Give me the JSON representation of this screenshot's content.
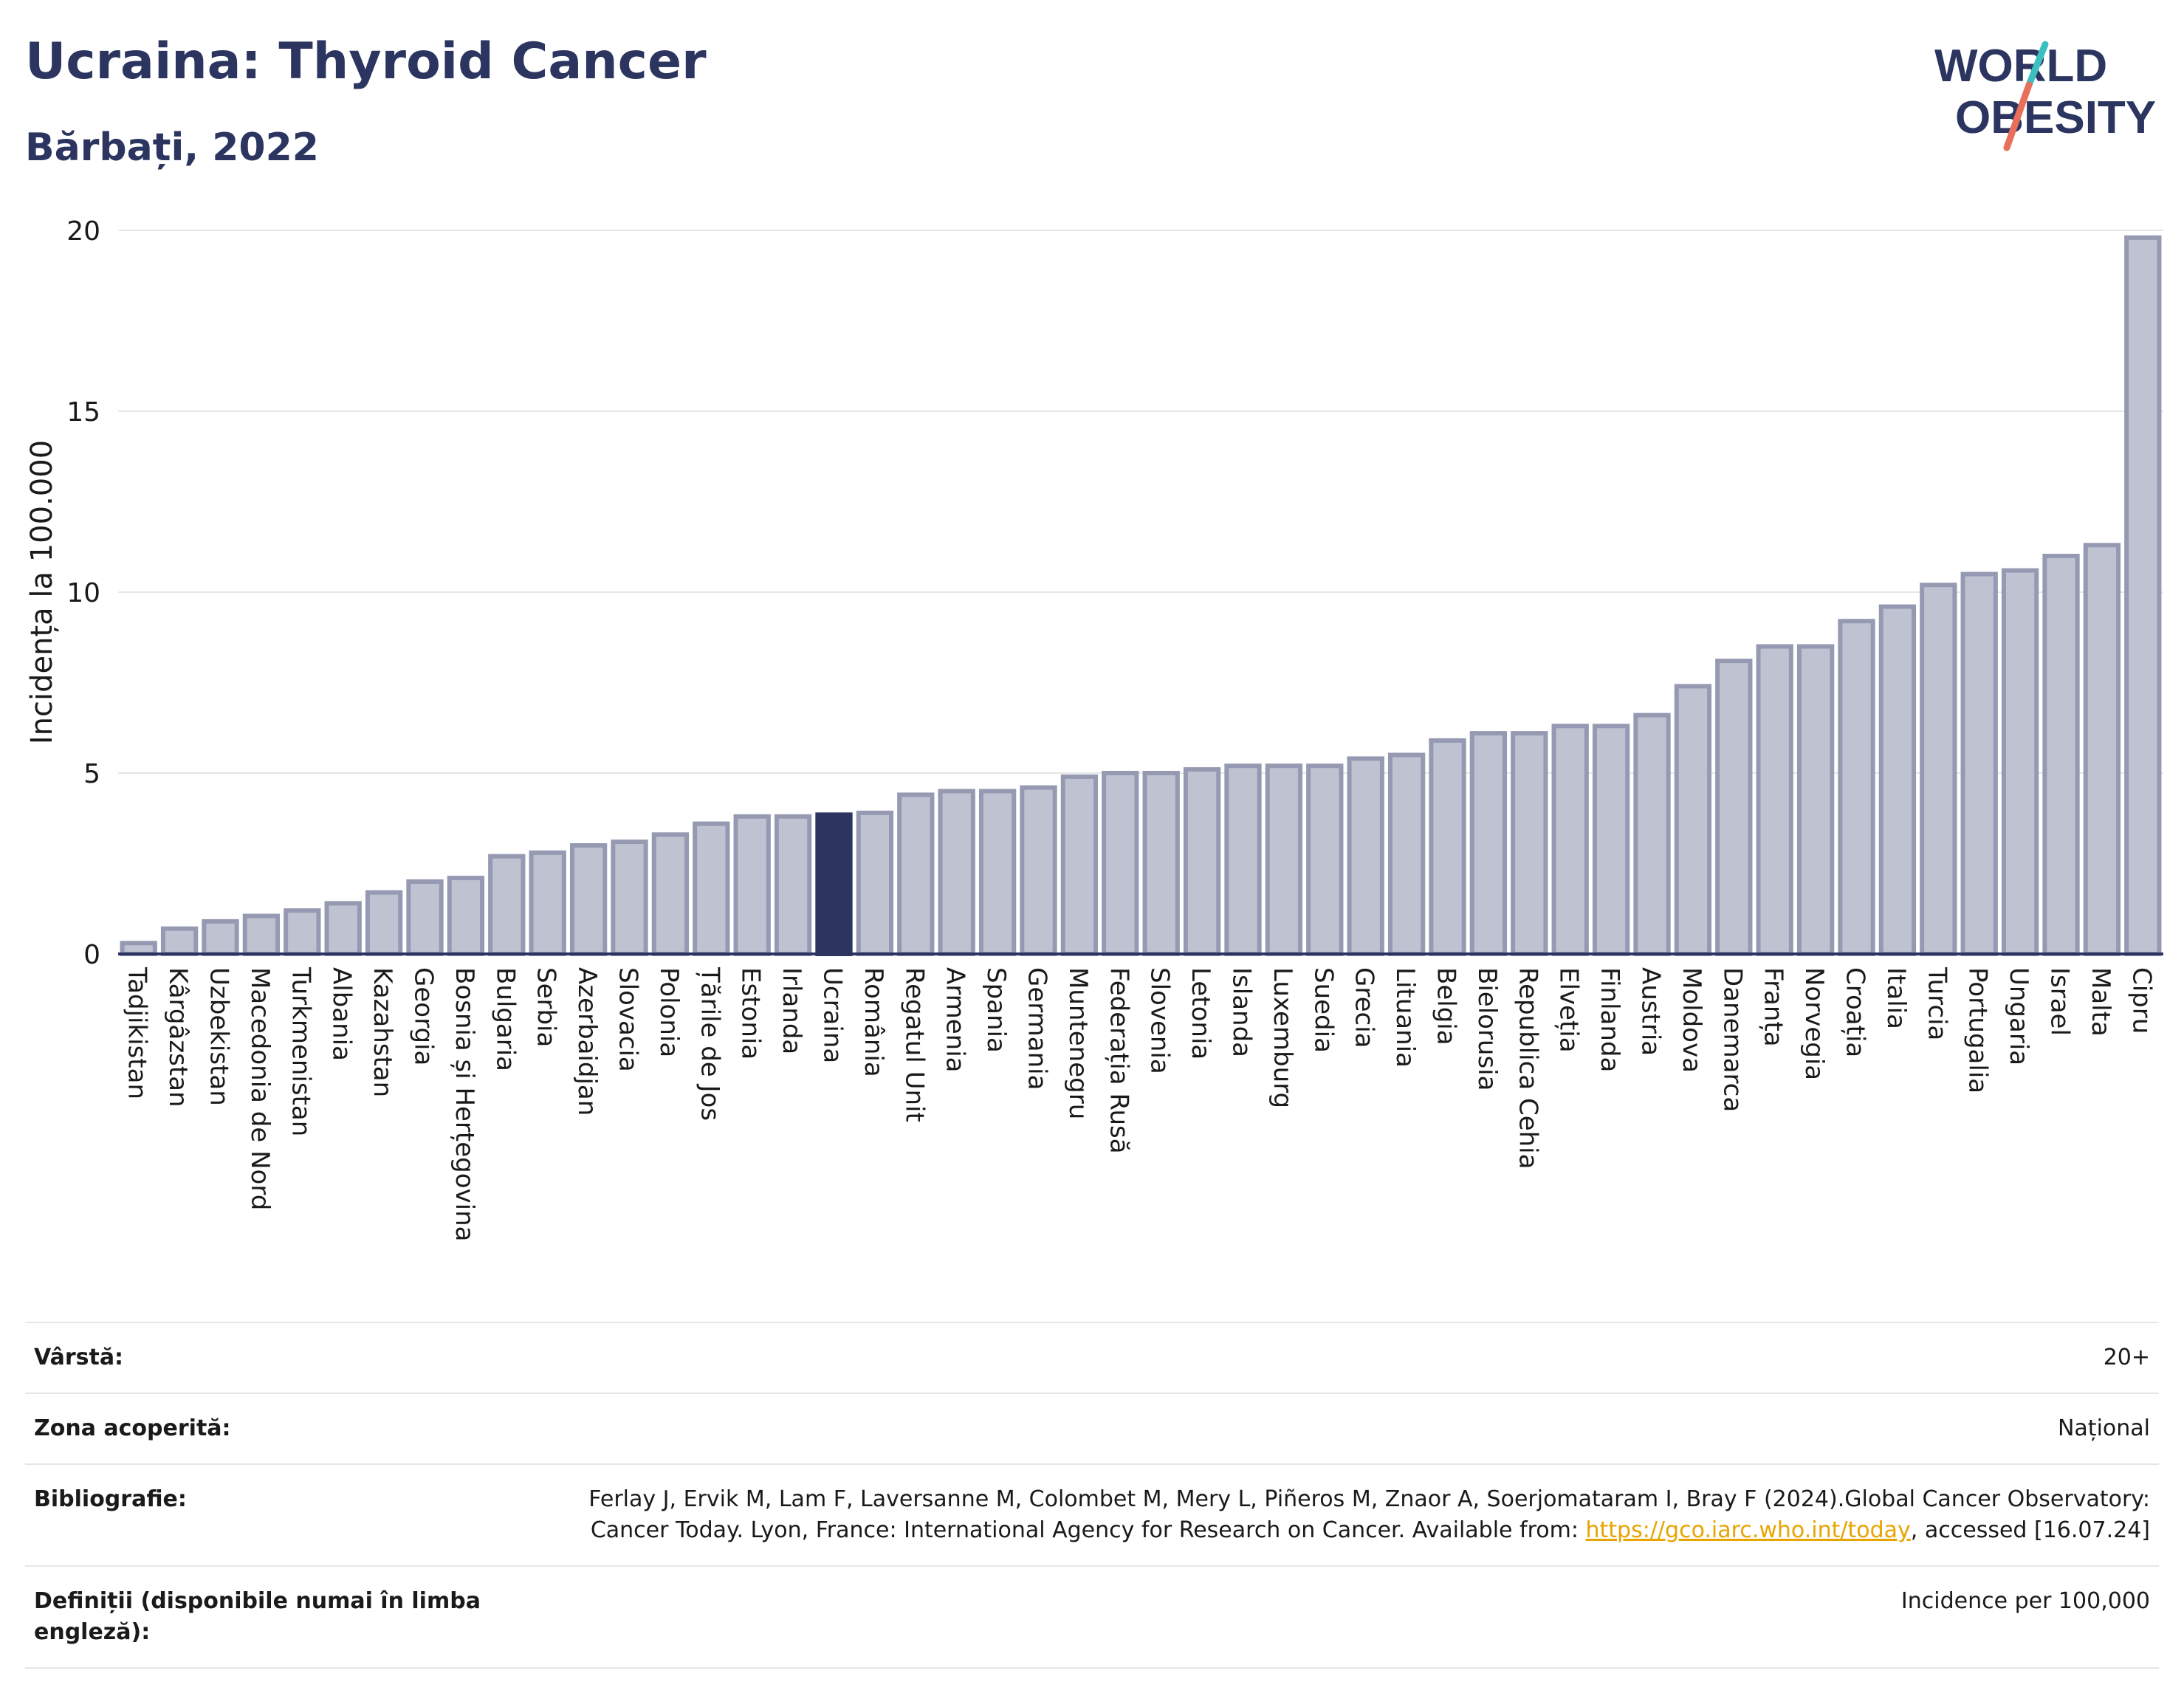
{
  "header": {
    "title": "Ucraina: Thyroid Cancer",
    "subtitle": "Bărbați, 2022"
  },
  "logo": {
    "line1": "WORLD",
    "line2": "OBESITY",
    "accent_colors": [
      "#3bbfbf",
      "#e8705a"
    ]
  },
  "colors": {
    "bar": "#bfc3d1",
    "bar_border": "#9599b2",
    "highlight": "#2b3560",
    "axis": "#2b3560",
    "grid": "#e6e6e6"
  },
  "chart_data": {
    "type": "bar",
    "ylabel": "Incidența la 100.000",
    "ylim": [
      0,
      20
    ],
    "yticks": [
      0,
      5,
      10,
      15,
      20
    ],
    "highlight": "Ucraina",
    "categories": [
      "Tadjikistan",
      "Kârgâzstan",
      "Uzbekistan",
      "Macedonia de Nord",
      "Turkmenistan",
      "Albania",
      "Kazahstan",
      "Georgia",
      "Bosnia și Herțegovina",
      "Bulgaria",
      "Serbia",
      "Azerbaidjan",
      "Slovacia",
      "Polonia",
      "Țările de Jos",
      "Estonia",
      "Irlanda",
      "Ucraina",
      "România",
      "Regatul Unit",
      "Armenia",
      "Spania",
      "Germania",
      "Muntenegru",
      "Federația Rusă",
      "Slovenia",
      "Letonia",
      "Islanda",
      "Luxemburg",
      "Suedia",
      "Grecia",
      "Lituania",
      "Belgia",
      "Bielorusia",
      "Republica Cehia",
      "Elveția",
      "Finlanda",
      "Austria",
      "Moldova",
      "Danemarca",
      "Franța",
      "Norvegia",
      "Croația",
      "Italia",
      "Turcia",
      "Portugalia",
      "Ungaria",
      "Israel",
      "Malta",
      "Cipru"
    ],
    "values": [
      0.3,
      0.7,
      0.9,
      1.05,
      1.2,
      1.4,
      1.7,
      2.0,
      2.1,
      2.7,
      2.8,
      3.0,
      3.1,
      3.3,
      3.6,
      3.8,
      3.8,
      3.85,
      3.9,
      4.4,
      4.5,
      4.5,
      4.6,
      4.9,
      5.0,
      5.0,
      5.1,
      5.2,
      5.2,
      5.2,
      5.4,
      5.5,
      5.9,
      6.1,
      6.1,
      6.3,
      6.3,
      6.6,
      7.4,
      8.1,
      8.5,
      8.5,
      9.2,
      9.6,
      10.2,
      10.5,
      10.6,
      11.0,
      11.3,
      19.8
    ]
  },
  "meta": [
    {
      "label": "Vârstă:",
      "value": "20+"
    },
    {
      "label": "Zona acoperită:",
      "value": "Național"
    },
    {
      "label": "Bibliografie:",
      "value_pre": "Ferlay J, Ervik M, Lam F, Laversanne M, Colombet M, Mery L, Piñeros M, Znaor A, Soerjomataram I, Bray F (2024).Global Cancer Observatory: Cancer Today. Lyon, France: International Agency for Research on Cancer. Available from: ",
      "link": "https://gco.iarc.who.int/today",
      "value_post": ", accessed [16.07.24]"
    },
    {
      "label": "Definiții (disponibile numai în limba engleză):",
      "value": "Incidence per 100,000"
    }
  ]
}
